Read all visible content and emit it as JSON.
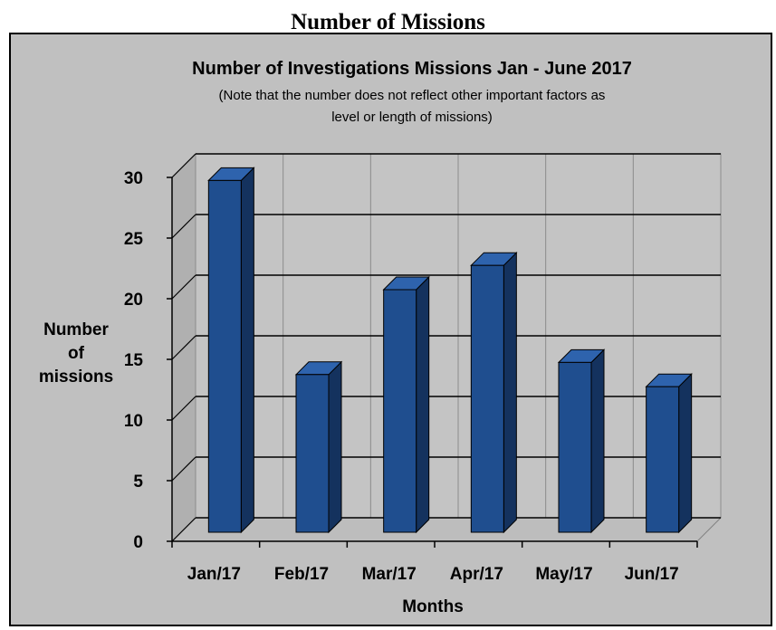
{
  "page": {
    "title": "Number of Missions"
  },
  "chart_data": {
    "type": "bar",
    "title": "Number of Investigations  Missions Jan - June 2017",
    "subtitle_lines": [
      "(Note that the number does not reflect other important factors as",
      "level or length of missions)"
    ],
    "xlabel": "Months",
    "ylabel_lines": [
      "Number",
      "of",
      "missions"
    ],
    "categories": [
      "Jan/17",
      "Feb/17",
      "Mar/17",
      "Apr/17",
      "May/17",
      "Jun/17"
    ],
    "values": [
      29,
      13,
      20,
      22,
      14,
      12
    ],
    "ylim": [
      0,
      30
    ],
    "yticks": [
      0,
      5,
      10,
      15,
      20,
      25,
      30
    ],
    "grid": true,
    "legend": "none",
    "colors": {
      "bar_front": "#1f4e8f",
      "bar_side": "#14325e",
      "bar_top": "#2e63ad",
      "plot_background": "#c0c0c0",
      "gridline": "#000000"
    }
  }
}
